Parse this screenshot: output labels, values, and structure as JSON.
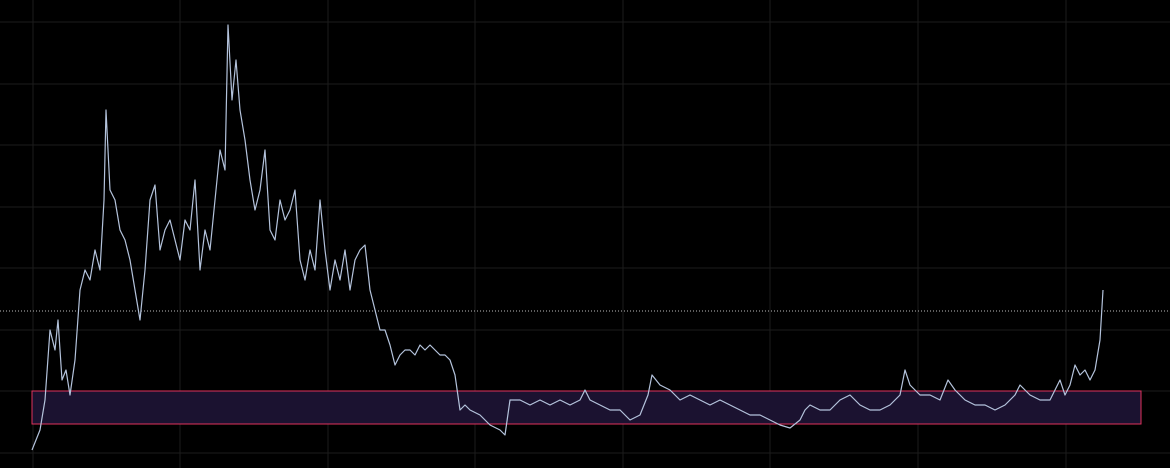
{
  "chart_data": {
    "type": "line",
    "xlim": [
      0,
      1170
    ],
    "ylim": [
      0,
      468
    ],
    "xticks": [
      33,
      180,
      328,
      475,
      623,
      770,
      918,
      1066
    ],
    "yticks": [
      15,
      77,
      138,
      200,
      261,
      323,
      384,
      446
    ],
    "grid": true,
    "grid_color": "#1c1c1c",
    "zone": {
      "x": [
        32,
        1141
      ],
      "y": [
        44,
        77
      ],
      "color": "#1b1230",
      "edge": "#e0325c"
    },
    "reference_line": {
      "value": 157,
      "color": "#bbbbbb"
    },
    "series": [
      {
        "color": "#b4c3dc",
        "x": [
          32,
          40,
          45,
          50,
          55,
          58,
          62,
          66,
          70,
          75,
          80,
          85,
          90,
          95,
          100,
          104,
          106,
          110,
          115,
          120,
          125,
          130,
          135,
          140,
          145,
          150,
          155,
          160,
          165,
          170,
          175,
          180,
          185,
          190,
          195,
          200,
          205,
          210,
          215,
          220,
          225,
          228,
          232,
          236,
          240,
          245,
          250,
          255,
          260,
          265,
          270,
          275,
          280,
          285,
          290,
          295,
          300,
          305,
          310,
          315,
          320,
          325,
          330,
          335,
          340,
          345,
          350,
          355,
          360,
          365,
          370,
          375,
          380,
          385,
          390,
          395,
          400,
          405,
          410,
          415,
          420,
          425,
          430,
          435,
          440,
          445,
          450,
          455,
          460,
          465,
          470,
          480,
          490,
          500,
          505,
          510,
          520,
          530,
          540,
          550,
          560,
          570,
          580,
          585,
          590,
          600,
          610,
          620,
          630,
          640,
          648,
          652,
          660,
          670,
          680,
          690,
          700,
          710,
          720,
          730,
          740,
          750,
          760,
          770,
          780,
          790,
          800,
          805,
          810,
          820,
          830,
          840,
          850,
          860,
          870,
          880,
          890,
          900,
          905,
          910,
          920,
          930,
          940,
          948,
          955,
          965,
          975,
          985,
          995,
          1005,
          1015,
          1020,
          1030,
          1040,
          1050,
          1060,
          1065,
          1070,
          1075,
          1080,
          1085,
          1090,
          1095,
          1100,
          1103
        ],
        "values": [
          18,
          38,
          68,
          138,
          118,
          148,
          88,
          98,
          73,
          108,
          178,
          198,
          188,
          218,
          198,
          268,
          358,
          278,
          268,
          238,
          228,
          208,
          178,
          148,
          198,
          268,
          283,
          218,
          238,
          248,
          228,
          208,
          248,
          238,
          288,
          198,
          238,
          218,
          268,
          318,
          298,
          443,
          368,
          408,
          358,
          328,
          288,
          258,
          278,
          318,
          238,
          228,
          268,
          248,
          258,
          278,
          208,
          188,
          218,
          198,
          268,
          218,
          178,
          208,
          188,
          218,
          178,
          208,
          218,
          223,
          178,
          158,
          138,
          138,
          123,
          103,
          113,
          118,
          118,
          113,
          123,
          118,
          123,
          118,
          113,
          113,
          108,
          93,
          58,
          63,
          58,
          53,
          43,
          38,
          33,
          68,
          68,
          63,
          68,
          63,
          68,
          63,
          68,
          78,
          68,
          63,
          58,
          58,
          48,
          53,
          73,
          93,
          83,
          78,
          68,
          73,
          68,
          63,
          68,
          63,
          58,
          53,
          53,
          48,
          43,
          40,
          48,
          58,
          63,
          58,
          58,
          68,
          73,
          63,
          58,
          58,
          63,
          73,
          98,
          83,
          73,
          73,
          68,
          88,
          78,
          68,
          63,
          63,
          58,
          63,
          73,
          83,
          73,
          68,
          68,
          88,
          73,
          83,
          103,
          93,
          98,
          88,
          98,
          128,
          178
        ]
      }
    ]
  }
}
